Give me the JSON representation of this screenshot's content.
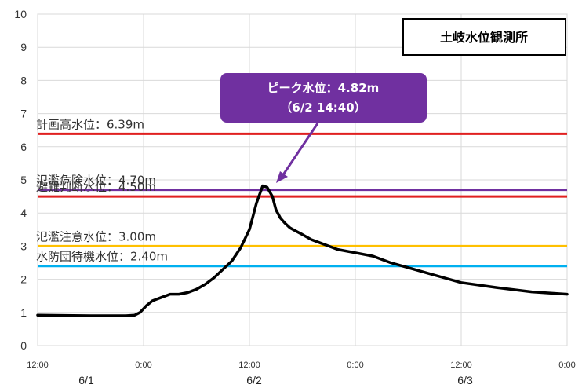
{
  "chart_data": {
    "type": "line",
    "title": "土岐水位観測所",
    "ylim": [
      0,
      10
    ],
    "y_ticks": [
      "0",
      "1",
      "2",
      "3",
      "4",
      "5",
      "6",
      "7",
      "8",
      "9",
      "10"
    ],
    "x_range_hours": [
      0,
      60
    ],
    "x_ticks": [
      "12:00",
      "0:00",
      "12:00",
      "0:00",
      "12:00",
      "0:00"
    ],
    "date_labels": [
      "6/1",
      "6/2",
      "6/3"
    ],
    "grid": true,
    "series": [
      {
        "x": [
          0,
          6,
          10,
          11,
          11.6,
          12.3,
          13,
          14,
          15,
          16,
          17,
          18,
          19,
          20,
          21,
          22,
          23,
          24,
          24.8,
          25.5,
          26,
          26.6,
          27,
          27.5,
          28,
          28.6,
          29.3,
          30,
          31,
          32,
          33,
          34,
          36,
          38,
          40,
          42,
          44,
          46,
          48,
          52,
          56,
          60
        ],
        "y": [
          0.92,
          0.9,
          0.9,
          0.92,
          1.0,
          1.2,
          1.35,
          1.45,
          1.55,
          1.55,
          1.6,
          1.7,
          1.85,
          2.05,
          2.3,
          2.55,
          2.95,
          3.5,
          4.3,
          4.82,
          4.78,
          4.5,
          4.1,
          3.85,
          3.7,
          3.55,
          3.45,
          3.35,
          3.2,
          3.1,
          3.0,
          2.9,
          2.8,
          2.7,
          2.5,
          2.35,
          2.2,
          2.05,
          1.9,
          1.75,
          1.62,
          1.55
        ],
        "color": "#000000"
      }
    ],
    "thresholds": [
      {
        "label": "計画高水位：6.39m",
        "value": 6.39,
        "color": "#e02020"
      },
      {
        "label": "氾濫危険水位：4.70m",
        "value": 4.7,
        "color": "#7030a0"
      },
      {
        "label": "避難判断水位：4.50m",
        "value": 4.5,
        "color": "#e02020"
      },
      {
        "label": "氾濫注意水位：3.00m",
        "value": 3.0,
        "color": "#ffc000"
      },
      {
        "label": "水防団待機水位：2.40m",
        "value": 2.4,
        "color": "#00b0f0"
      }
    ],
    "annotation": {
      "line1": "ピーク水位：4.82m",
      "line2": "（6/2 14:40）",
      "x": 25.5,
      "y": 4.82,
      "color": "#7030a0"
    }
  }
}
